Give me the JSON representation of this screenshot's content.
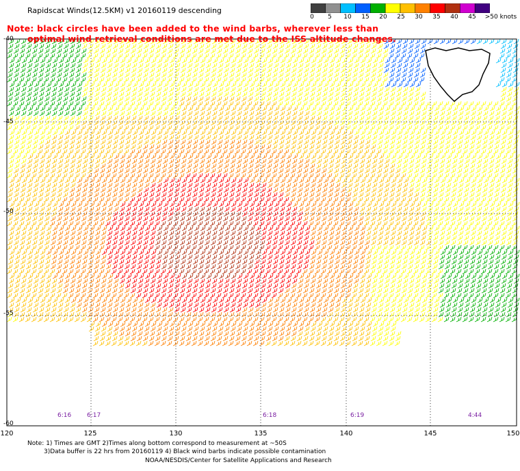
{
  "title": "Rapidscat Winds(12.5KM) v1 20160119 descending",
  "note_line1": "Note: black circles have been added to the wind barbs, wherever less than",
  "note_line2": "optimal wind retrieval conditions are met due to the ISS altitude changes.",
  "legend": {
    "labels": [
      "0",
      "5",
      "10",
      "15",
      "20",
      "25",
      "30",
      "35",
      "40",
      "45",
      ">50 knots"
    ],
    "colors": [
      "#404040",
      "#909090",
      "#00bfff",
      "#0060ff",
      "#00b000",
      "#ffff00",
      "#ffc000",
      "#ff8000",
      "#ff0000",
      "#b03010",
      "#d000d0",
      "#400080"
    ]
  },
  "lat_labels": [
    "-40",
    "-45",
    "-50",
    "-55",
    "-60"
  ],
  "lon_labels": [
    "120",
    "125",
    "130",
    "135",
    "140",
    "145",
    "150"
  ],
  "time_labels": [
    "6:16",
    "6:17",
    "6:18",
    "6:19",
    "4:44"
  ],
  "footer": {
    "line1": "Note: 1) Times are GMT 2)Times along bottom correspond to measurement at ~50S",
    "line2": "3)Data buffer is 22 hrs from 20160119 4) Black wind barbs indicate possible contamination",
    "line3": "NOAA/NESDIS/Center for Satellite Applications and Research"
  },
  "map_features": {
    "landmass": "Tasmania",
    "grid": true
  }
}
